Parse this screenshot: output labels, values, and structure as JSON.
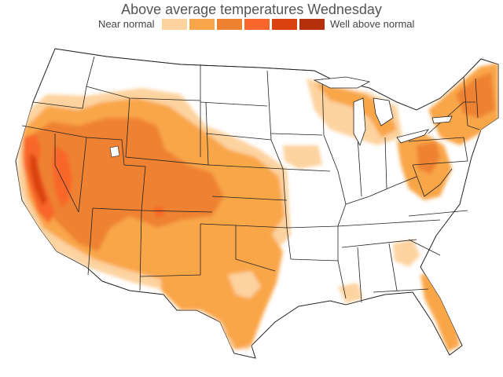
{
  "title": "Above average temperatures Wednesday",
  "legend": {
    "low_label": "Near normal",
    "high_label": "Well above normal",
    "colors": [
      "#fdd3a0",
      "#f9a64a",
      "#ee8230",
      "#f8662c",
      "#da4210",
      "#b52f0b"
    ]
  },
  "map": {
    "state_border_color": "#222222",
    "background": "#ffffff"
  }
}
